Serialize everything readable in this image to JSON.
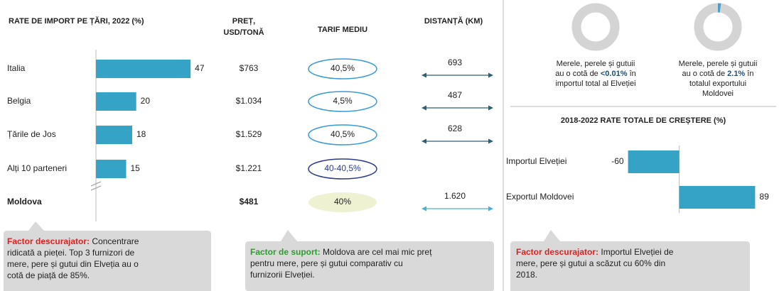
{
  "chart_data": [
    {
      "type": "hbar",
      "title": "RATE DE IMPORT PE ȚĂRI, 2022 (%)",
      "categories": [
        "Italia",
        "Belgia",
        "Țările de Jos",
        "Alți 10 parteneri",
        "Moldova"
      ],
      "values": [
        47,
        20,
        18,
        15,
        null
      ],
      "color": "#35a3c6",
      "xlim": [
        0,
        48
      ]
    },
    {
      "type": "hbar",
      "title": "2018-2022 RATE TOTALE DE CREȘTERE (%)",
      "categories": [
        "Importul Elveției",
        "Exportul Moldovei"
      ],
      "values": [
        -60,
        89
      ],
      "color": "#35a3c6",
      "xlim": [
        -63,
        92
      ]
    }
  ],
  "table": {
    "headers": {
      "price": [
        "PREȚ,",
        "USD/TONĂ"
      ],
      "tariff": "TARIF MEDIU",
      "distance": "DISTANȚĂ (KM)"
    },
    "rows": [
      {
        "price": "$763",
        "tariff": "40,5%",
        "distance": "693"
      },
      {
        "price": "$1.034",
        "tariff": "4,5%",
        "distance": "487"
      },
      {
        "price": "$1.529",
        "tariff": "40,5%",
        "distance": "628"
      },
      {
        "price": "$1.221",
        "tariff": "40-40,5%",
        "distance": ""
      },
      {
        "price": "$481",
        "tariff": "40%",
        "distance": "1.620"
      }
    ]
  },
  "donuts": [
    {
      "value": 0.01,
      "line1": "Merele, perele și gutuii",
      "pre": "au o cotă de",
      "highlight": "<0.01%",
      "post": "în",
      "rest": [
        "importul total al Elveției"
      ]
    },
    {
      "value": 2.1,
      "line1": "Merele, perele și gutuii",
      "pre": "au o cotă de",
      "highlight": "2.1%",
      "post": "în",
      "rest": [
        "totalul exportului",
        "Moldovei"
      ]
    }
  ],
  "callouts": [
    {
      "label": "Factor descurajator:",
      "lines": [
        "Concentrare",
        "ridicată a pieței. Top 3 furnizori de",
        "mere, pere și gutui din Elveția au o",
        "cotă de piață de 85%."
      ]
    },
    {
      "label": "Factor de suport:",
      "lines": [
        "Moldova are cel mai mic preț",
        "pentru mere, pere și gutui comparativ cu",
        "furnizorii Elveției."
      ]
    },
    {
      "label": "Factor descurajator:",
      "lines": [
        "Importul Elveției de",
        "mere, pere și gutui a scăzut cu 60% din",
        "2018."
      ]
    }
  ]
}
